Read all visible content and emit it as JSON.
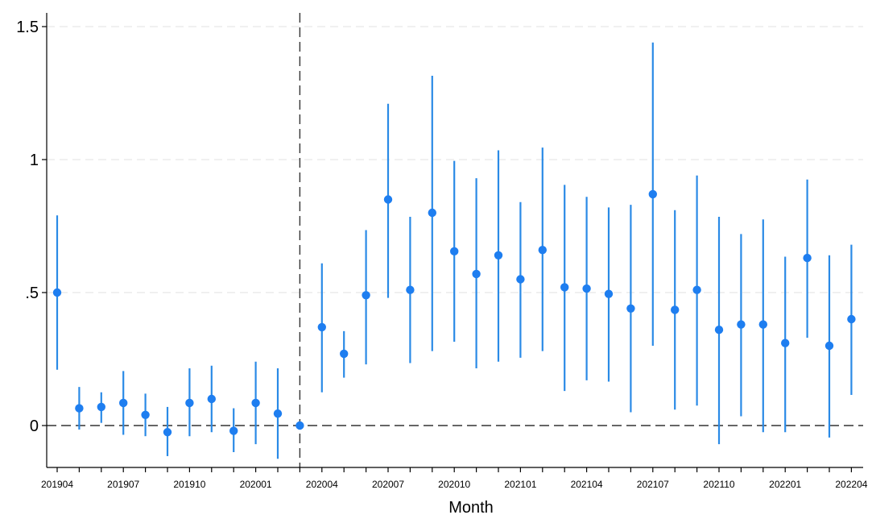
{
  "chart_data": {
    "type": "scatter",
    "title": "",
    "xlabel": "Month",
    "ylabel": "",
    "ylim": [
      -0.15,
      1.55
    ],
    "yticks": [
      0,
      0.5,
      1,
      1.5
    ],
    "ytick_labels": [
      "0",
      ".5",
      "1",
      "1.5"
    ],
    "reference_line_y": 0,
    "event_line_after": "202003",
    "grid": true,
    "colors": {
      "marker": "#1e7ef0",
      "ci": "#2a8ae6",
      "axis": "#000000",
      "grid": "#e6e6e6",
      "refline": "#333333"
    },
    "x": [
      "201904",
      "201905",
      "201906",
      "201907",
      "201908",
      "201909",
      "201910",
      "201911",
      "201912",
      "202001",
      "202002",
      "202003",
      "202004",
      "202005",
      "202006",
      "202007",
      "202008",
      "202009",
      "202010",
      "202011",
      "202012",
      "202101",
      "202102",
      "202103",
      "202104",
      "202105",
      "202106",
      "202107",
      "202108",
      "202109",
      "202110",
      "202111",
      "202112",
      "202201",
      "202202",
      "202203",
      "202204"
    ],
    "xtick_labels": [
      "201904",
      "",
      "",
      "201907",
      "",
      "",
      "201910",
      "",
      "",
      "202001",
      "",
      "",
      "202004",
      "",
      "",
      "202007",
      "",
      "",
      "202010",
      "",
      "",
      "202101",
      "",
      "",
      "202104",
      "",
      "",
      "202107",
      "",
      "",
      "202110",
      "",
      "",
      "202201",
      "",
      "",
      "202204"
    ],
    "estimate": [
      0.5,
      0.065,
      0.07,
      0.085,
      0.04,
      -0.025,
      0.085,
      0.1,
      -0.02,
      0.085,
      0.045,
      0.0,
      0.37,
      0.27,
      0.49,
      0.85,
      0.51,
      0.8,
      0.655,
      0.57,
      0.64,
      0.55,
      0.66,
      0.52,
      0.515,
      0.495,
      0.44,
      0.87,
      0.435,
      0.51,
      0.36,
      0.38,
      0.38,
      0.31,
      0.63,
      0.3,
      0.4
    ],
    "ci_low": [
      0.21,
      -0.015,
      0.01,
      -0.035,
      -0.04,
      -0.115,
      -0.04,
      -0.025,
      -0.1,
      -0.07,
      -0.125,
      0.0,
      0.125,
      0.18,
      0.23,
      0.48,
      0.235,
      0.28,
      0.315,
      0.215,
      0.24,
      0.255,
      0.28,
      0.13,
      0.17,
      0.165,
      0.05,
      0.3,
      0.06,
      0.075,
      -0.07,
      0.035,
      -0.025,
      -0.025,
      0.33,
      -0.045,
      0.115
    ],
    "ci_high": [
      0.79,
      0.145,
      0.125,
      0.205,
      0.12,
      0.07,
      0.215,
      0.225,
      0.065,
      0.24,
      0.215,
      0.0,
      0.61,
      0.355,
      0.735,
      1.21,
      0.785,
      1.315,
      0.995,
      0.93,
      1.035,
      0.84,
      1.045,
      0.905,
      0.86,
      0.82,
      0.83,
      1.44,
      0.81,
      0.94,
      0.785,
      0.72,
      0.775,
      0.635,
      0.925,
      0.64,
      0.68
    ]
  }
}
